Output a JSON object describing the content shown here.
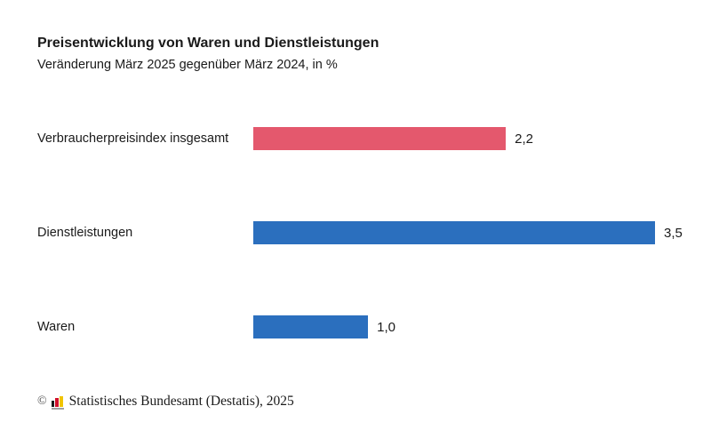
{
  "chart_data": {
    "type": "bar",
    "orientation": "horizontal",
    "title": "Preisentwicklung von Waren und Dienstleistungen",
    "subtitle": "Veränderung März 2025 gegenüber März 2024, in %",
    "categories": [
      "Verbraucherpreisindex insgesamt",
      "Dienstleistungen",
      "Waren"
    ],
    "values": [
      2.2,
      3.5,
      1.0
    ],
    "value_labels": [
      "2,2",
      "3,5",
      "1,0"
    ],
    "colors": [
      "#e4586d",
      "#2b6fbe",
      "#2b6fbe"
    ],
    "xlim": [
      0,
      3.5
    ],
    "grid": false,
    "legend": false
  },
  "footer": {
    "copyright_symbol": "©",
    "source": "Statistisches Bundesamt (Destatis), 2025",
    "logo": {
      "bar1_color": "#1a1a1a",
      "bar2_color": "#d10f2a",
      "bar3_color": "#f0c400",
      "baseline_color": "#a0a0a0"
    }
  }
}
